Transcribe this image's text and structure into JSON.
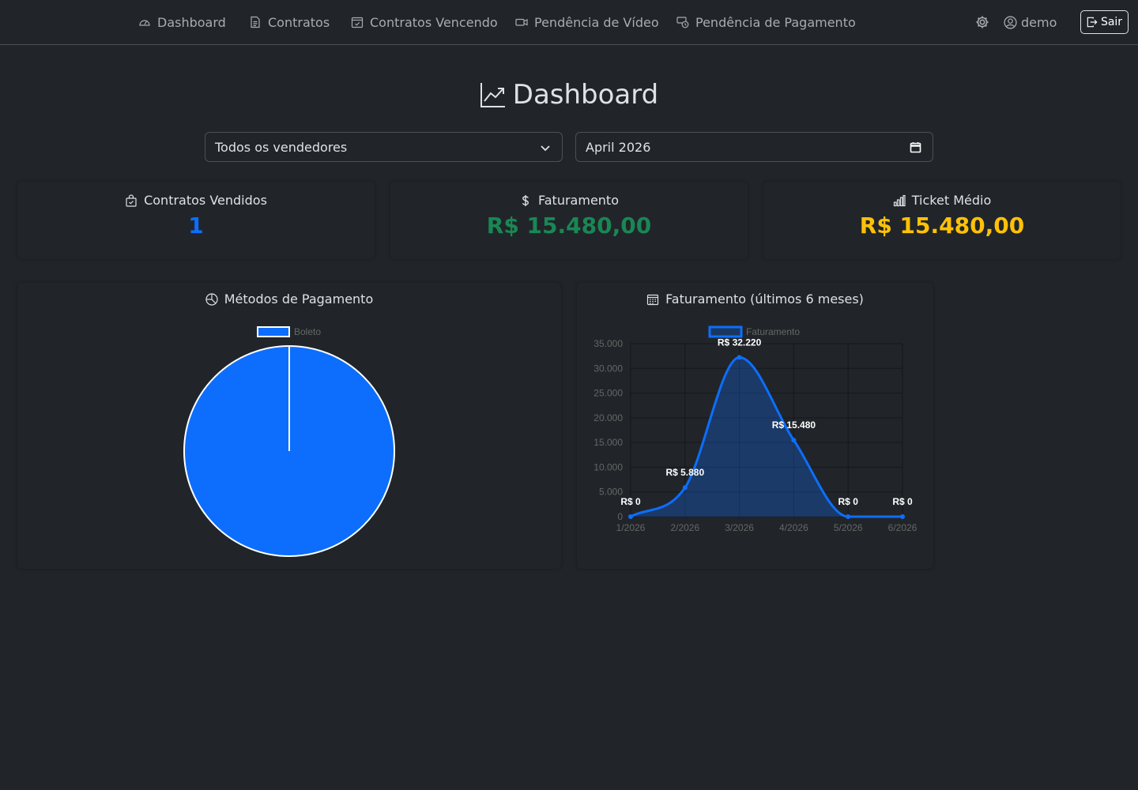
{
  "nav": {
    "dashboard": "Dashboard",
    "contratos": "Contratos",
    "vencendo": "Contratos Vencendo",
    "video": "Pendência de Vídeo",
    "pagamento": "Pendência de Pagamento",
    "user": "demo",
    "logout": "Sair"
  },
  "page": {
    "title": "Dashboard"
  },
  "filters": {
    "vendedor": "Todos os vendedores",
    "mes": "April 2026"
  },
  "stats": {
    "vendidos_label": "Contratos Vendidos",
    "vendidos_value": "1",
    "faturamento_label": "Faturamento",
    "faturamento_value": "R$ 15.480,00",
    "ticket_label": "Ticket Médio",
    "ticket_value": "R$ 15.480,00"
  },
  "colors": {
    "blue": "#0d6efd",
    "green": "#198754",
    "yellow": "#ffc107",
    "bg": "#212529"
  },
  "chart_data": [
    {
      "type": "pie",
      "title": "Métodos de Pagamento",
      "labels": [
        "Boleto"
      ],
      "values": [
        1
      ],
      "legend": "top"
    },
    {
      "type": "area",
      "title": "Faturamento (últimos 6 meses)",
      "categories": [
        "1/2026",
        "2/2026",
        "3/2026",
        "4/2026",
        "5/2026",
        "6/2026"
      ],
      "series": [
        {
          "name": "Faturamento",
          "values": [
            0,
            5880,
            32220,
            15480,
            0,
            0
          ]
        }
      ],
      "data_labels": [
        "R$ 0",
        "R$ 5.880",
        "R$ 32.220",
        "R$ 15.480",
        "R$ 0",
        "R$ 0"
      ],
      "yticks": [
        "0",
        "5.000",
        "10.000",
        "15.000",
        "20.000",
        "25.000",
        "30.000",
        "35.000"
      ],
      "ylim": [
        0,
        35000
      ],
      "grid": true,
      "legend": "top"
    }
  ]
}
